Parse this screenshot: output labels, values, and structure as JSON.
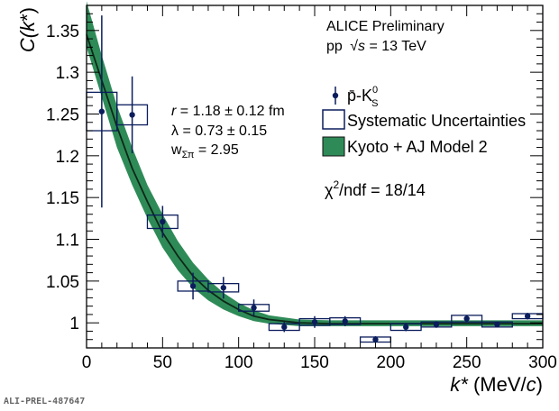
{
  "chart_data": {
    "type": "scatter",
    "xlabel_italic": "k*",
    "xlabel_unit_pre": "(MeV/",
    "xlabel_unit_c": "c",
    "xlabel_unit_post": ")",
    "ylabel_pre": "C(",
    "ylabel_k": "k",
    "ylabel_post": "*)",
    "xlim": [
      0,
      300
    ],
    "ylim": [
      0.97,
      1.38
    ],
    "x_ticks": [
      0,
      50,
      100,
      150,
      200,
      250,
      300
    ],
    "y_ticks": [
      1.0,
      1.05,
      1.1,
      1.15,
      1.2,
      1.25,
      1.3,
      1.35
    ],
    "x_tick_labels": [
      "0",
      "50",
      "100",
      "150",
      "200",
      "250",
      "300"
    ],
    "y_tick_labels": [
      "1",
      "1.05",
      "1.1",
      "1.15",
      "1.2",
      "1.25",
      "1.3",
      "1.35"
    ],
    "series": [
      {
        "name": "p̄-K⁰S",
        "color": "#0b1d5c",
        "points": [
          {
            "x": 10,
            "y": 1.253,
            "err": 0.115,
            "sys": 0.023
          },
          {
            "x": 30,
            "y": 1.249,
            "err": 0.046,
            "sys": 0.012
          },
          {
            "x": 50,
            "y": 1.121,
            "err": 0.019,
            "sys": 0.008
          },
          {
            "x": 70,
            "y": 1.044,
            "err": 0.016,
            "sys": 0.006
          },
          {
            "x": 90,
            "y": 1.042,
            "err": 0.013,
            "sys": 0.005
          },
          {
            "x": 110,
            "y": 1.018,
            "err": 0.01,
            "sys": 0.004
          },
          {
            "x": 130,
            "y": 0.995,
            "err": 0.006,
            "sys": 0.004
          },
          {
            "x": 150,
            "y": 1.001,
            "err": 0.007,
            "sys": 0.004
          },
          {
            "x": 170,
            "y": 1.002,
            "err": 0.006,
            "sys": 0.004
          },
          {
            "x": 190,
            "y": 0.98,
            "err": 0.004,
            "sys": 0.003
          },
          {
            "x": 210,
            "y": 0.995,
            "err": 0.005,
            "sys": 0.004
          },
          {
            "x": 230,
            "y": 0.998,
            "err": 0.004,
            "sys": 0.003
          },
          {
            "x": 250,
            "y": 1.005,
            "err": 0.004,
            "sys": 0.004
          },
          {
            "x": 270,
            "y": 0.998,
            "err": 0.003,
            "sys": 0.003
          },
          {
            "x": 290,
            "y": 1.008,
            "err": 0.004,
            "sys": 0.003
          }
        ]
      },
      {
        "name": "Kyoto + AJ Model 2",
        "color": "#2e8b57",
        "band": [
          {
            "x": 0,
            "lo": 1.33,
            "hi": 1.385
          },
          {
            "x": 10,
            "lo": 1.27,
            "hi": 1.32
          },
          {
            "x": 20,
            "lo": 1.21,
            "hi": 1.26
          },
          {
            "x": 30,
            "lo": 1.165,
            "hi": 1.21
          },
          {
            "x": 40,
            "lo": 1.125,
            "hi": 1.165
          },
          {
            "x": 50,
            "lo": 1.09,
            "hi": 1.13
          },
          {
            "x": 60,
            "lo": 1.063,
            "hi": 1.098
          },
          {
            "x": 70,
            "lo": 1.042,
            "hi": 1.072
          },
          {
            "x": 80,
            "lo": 1.027,
            "hi": 1.052
          },
          {
            "x": 90,
            "lo": 1.016,
            "hi": 1.036
          },
          {
            "x": 100,
            "lo": 1.008,
            "hi": 1.024
          },
          {
            "x": 110,
            "lo": 1.002,
            "hi": 1.015
          },
          {
            "x": 120,
            "lo": 0.999,
            "hi": 1.009
          },
          {
            "x": 140,
            "lo": 0.996,
            "hi": 1.004
          },
          {
            "x": 160,
            "lo": 0.996,
            "hi": 1.003
          },
          {
            "x": 200,
            "lo": 0.996,
            "hi": 1.003
          },
          {
            "x": 250,
            "lo": 0.996,
            "hi": 1.003
          },
          {
            "x": 300,
            "lo": 0.996,
            "hi": 1.003
          }
        ],
        "central": [
          {
            "x": 0,
            "y": 1.345
          },
          {
            "x": 10,
            "y": 1.29
          },
          {
            "x": 20,
            "y": 1.235
          },
          {
            "x": 30,
            "y": 1.185
          },
          {
            "x": 40,
            "y": 1.145
          },
          {
            "x": 50,
            "y": 1.108
          },
          {
            "x": 60,
            "y": 1.08
          },
          {
            "x": 70,
            "y": 1.056
          },
          {
            "x": 80,
            "y": 1.039
          },
          {
            "x": 90,
            "y": 1.026
          },
          {
            "x": 100,
            "y": 1.016
          },
          {
            "x": 110,
            "y": 1.008
          },
          {
            "x": 120,
            "y": 1.004
          },
          {
            "x": 140,
            "y": 1.0
          },
          {
            "x": 160,
            "y": 0.999
          },
          {
            "x": 200,
            "y": 0.999
          },
          {
            "x": 250,
            "y": 0.999
          },
          {
            "x": 300,
            "y": 0.999
          }
        ]
      }
    ],
    "annotations": {
      "experiment": "ALICE Preliminary",
      "system_pre": "pp",
      "sqrt_sym": "√",
      "s_sym": "s",
      "system_post": " = 13 TeV",
      "r_sym": "r",
      "r_rest": " = 1.18 ± 0.12 fm",
      "lambda_line": "λ = 0.73 ± 0.15",
      "w_base": "w",
      "w_sub": "Σπ",
      "w_rest": " = 2.95",
      "chi_base": "χ",
      "chi_sup": "2",
      "chi_rest": "/ndf = 18/14"
    },
    "legend": {
      "placement": "top-right",
      "data_label_base": "p̄-K",
      "data_label_sup": "0",
      "data_label_sub": "S",
      "sys_label": "Systematic Uncertainties",
      "model_label": "Kyoto + AJ Model 2"
    }
  },
  "footer_id": "ALI-PREL-487647",
  "colors": {
    "data": "#0b1d5c",
    "band": "#2e8b57",
    "curve": "#0d2818",
    "sysbox": "#0b1d5c"
  }
}
